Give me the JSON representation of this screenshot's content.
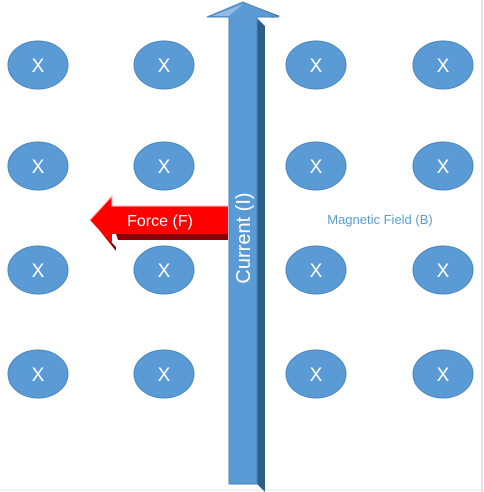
{
  "diagram": {
    "field_symbol": "X",
    "field_label": "Magnetic Field (B)",
    "current_label": "Current (I)",
    "force_label": "Force (F)",
    "dot_rows": 4,
    "dot_columns": 4,
    "current_direction": "up",
    "force_direction": "left"
  },
  "colors": {
    "field_dot_fill": "#5b9bd5",
    "field_dot_edge": "#4a86be",
    "current_arrow_front": "#5b9bd5",
    "current_arrow_side": "#2e5f8a",
    "current_arrow_top": "#a9c9e9",
    "force_arrow_front": "#ff0000",
    "force_arrow_side": "#8b0000",
    "field_label_text": "#5b9bd5",
    "border": "#d9d9d9"
  }
}
